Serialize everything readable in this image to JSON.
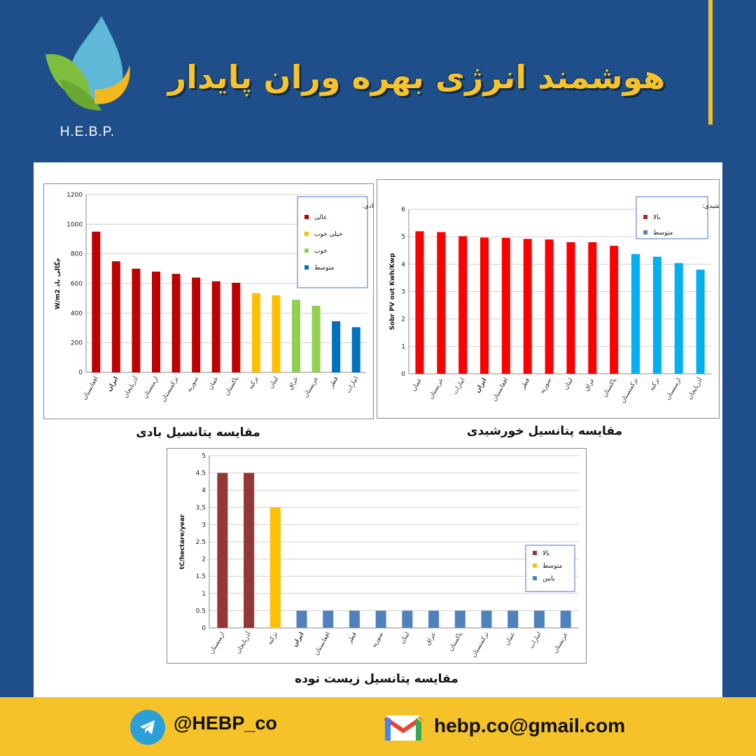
{
  "brand": {
    "logo_text": "H.E.B.P.",
    "title": "هوشمند انرژی بهره وران پایدار"
  },
  "footer": {
    "telegram": "@HEBP_co",
    "email": "hebp.co@gmail.com"
  },
  "captions": {
    "wind": "مقایسه پتانسیل بادی",
    "solar": "مقایسه پتانسیل خورشیدی",
    "biomass": "مقایسه پتانسیل زیست توده"
  },
  "colors": {
    "header_bg": "#1f4f8a",
    "accent": "#f2c12e",
    "footer_bg": "#f5c229"
  },
  "chart_data": [
    {
      "id": "wind",
      "type": "bar",
      "ylabel": "W/m2 چگالی باد",
      "ylim": [
        0,
        1200
      ],
      "yticks": [
        0,
        200,
        400,
        600,
        800,
        1000,
        1200
      ],
      "categories": [
        "افغانستان",
        "ایران",
        "آذربایجان",
        "ارمنستان",
        "ترکمنستان",
        "سوریه",
        "عمان",
        "پاکستان",
        "ترکیه",
        "لبنان",
        "عراق",
        "عربستان",
        "قطر",
        "امارات"
      ],
      "values": [
        950,
        750,
        700,
        680,
        665,
        640,
        615,
        605,
        535,
        520,
        490,
        450,
        345,
        305
      ],
      "bar_colors": [
        "#c00000",
        "#c00000",
        "#c00000",
        "#c00000",
        "#c00000",
        "#c00000",
        "#c00000",
        "#c00000",
        "#ffc000",
        "#ffc000",
        "#92d050",
        "#92d050",
        "#0070c0",
        "#0070c0"
      ],
      "bold_category": "ایران",
      "legend": {
        "title": "کلاس بادی:",
        "items": [
          {
            "label": "عالی",
            "color": "#c00000"
          },
          {
            "label": "خیلی خوب",
            "color": "#ffc000"
          },
          {
            "label": "خوب",
            "color": "#92d050"
          },
          {
            "label": "متوسط",
            "color": "#0070c0"
          }
        ]
      }
    },
    {
      "id": "solar",
      "type": "bar",
      "ylabel": "Sobr PV out Kwh/Kwp",
      "ylim": [
        0,
        6
      ],
      "yticks": [
        0,
        1,
        2,
        3,
        4,
        5,
        6
      ],
      "categories": [
        "عمان",
        "عربستان",
        "امارات",
        "ایران",
        "افغانستان",
        "قطر",
        "سوریه",
        "لبنان",
        "عراق",
        "پاکستان",
        "ترکمنستان",
        "ترکیه",
        "ارمنستان",
        "آذربایجان"
      ],
      "values": [
        5.2,
        5.17,
        5.02,
        4.97,
        4.96,
        4.92,
        4.9,
        4.8,
        4.8,
        4.67,
        4.37,
        4.27,
        4.04,
        3.8
      ],
      "bar_colors": [
        "#ff0000",
        "#ff0000",
        "#ff0000",
        "#ff0000",
        "#ff0000",
        "#ff0000",
        "#ff0000",
        "#ff0000",
        "#ff0000",
        "#ff0000",
        "#00b0f0",
        "#00b0f0",
        "#00b0f0",
        "#00b0f0"
      ],
      "bold_category": "ایران",
      "legend": {
        "title": "رتبه بندی خورشیدی:",
        "items": [
          {
            "label": "بالا",
            "color": "#a52a2a"
          },
          {
            "label": "متوسط",
            "color": "#4f81bd"
          }
        ]
      }
    },
    {
      "id": "biomass",
      "type": "bar",
      "ylabel": "tC/hectare/year",
      "ylim": [
        0,
        5
      ],
      "yticks": [
        0,
        0.5,
        1,
        1.5,
        2,
        2.5,
        3,
        3.5,
        4,
        4.5,
        5
      ],
      "categories": [
        "ارمنستان",
        "آذربایجان",
        "ترکیه",
        "ایران",
        "افغانستان",
        "قطر",
        "سوریه",
        "لبنان",
        "عراق",
        "پاکستان",
        "ترکمنستان",
        "عمان",
        "امارات",
        "عربستان"
      ],
      "values": [
        4.5,
        4.5,
        3.5,
        0.5,
        0.5,
        0.5,
        0.5,
        0.5,
        0.5,
        0.5,
        0.5,
        0.5,
        0.5,
        0.5
      ],
      "bar_colors": [
        "#953735",
        "#953735",
        "#ffc000",
        "#4f81bd",
        "#4f81bd",
        "#4f81bd",
        "#4f81bd",
        "#4f81bd",
        "#4f81bd",
        "#4f81bd",
        "#4f81bd",
        "#4f81bd",
        "#4f81bd",
        "#4f81bd"
      ],
      "bold_category": "ایران",
      "legend": {
        "title": "",
        "items": [
          {
            "label": "بالا",
            "color": "#953735"
          },
          {
            "label": "متوسط",
            "color": "#ffc000"
          },
          {
            "label": "پایین",
            "color": "#4f81bd"
          }
        ]
      }
    }
  ]
}
